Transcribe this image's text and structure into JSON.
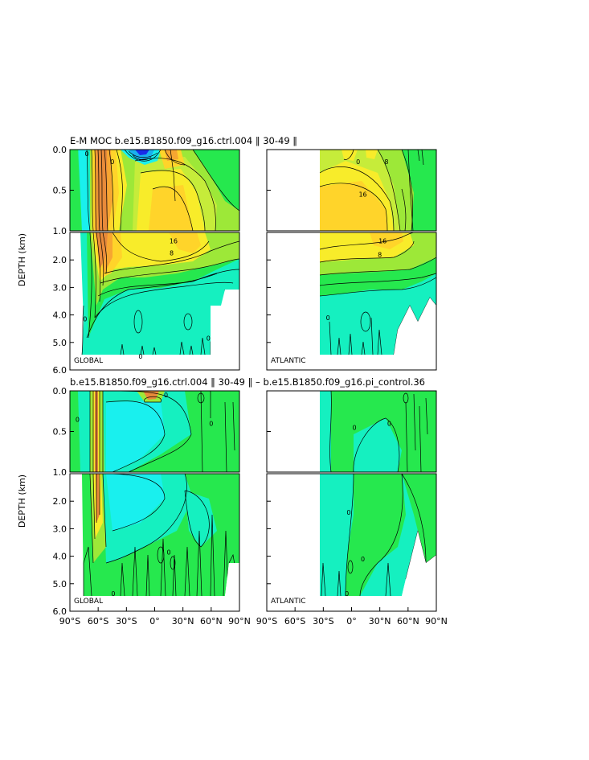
{
  "figure": {
    "title_top": "E-M MOC   b.e15.B1850.f09_g16.ctrl.004  ‖ 30-49 ‖",
    "title_bottom": "b.e15.B1850.f09_g16.ctrl.004  ‖ 30-49 ‖  –  b.e15.B1850.f09_g16.pi_control.36"
  },
  "axes": {
    "ylabel": "DEPTH (km)",
    "upper_y_ticks": [
      "0.0",
      "0.5",
      "1.0"
    ],
    "lower_y_ticks": [
      "2.0",
      "3.0",
      "4.0",
      "5.0",
      "6.0"
    ],
    "x_ticks": [
      "90°S",
      "60°S",
      "30°S",
      "0°",
      "30°N",
      "60°N",
      "90°N"
    ]
  },
  "colors": {
    "cyan_neg": "#19f0ee",
    "teal": "#15f0c0",
    "aqua_green": "#1be8a6",
    "green": "#26e84e",
    "bright_green": "#1fe21f",
    "light_green": "#9de838",
    "yellow_green": "#c6ec3a",
    "yellow": "#f8ec2a",
    "gold": "#ffd42a",
    "orange": "#f7a631",
    "dark_orange": "#e88a3a",
    "blue": "#1a2be8"
  },
  "chart_data": [
    {
      "type": "heatmap",
      "region": "GLOBAL",
      "title": "E-M MOC   b.e15.B1850.f09_g16.ctrl.004  ‖ 30-49 ‖",
      "ylabel": "DEPTH (km)",
      "xlim": [
        -90,
        90
      ],
      "ylim": [
        6.0,
        0.0
      ],
      "contour_labels": [
        {
          "text": "16",
          "lat": 20,
          "depth": 1.3
        },
        {
          "text": "8",
          "lat": 18,
          "depth": 1.75
        },
        {
          "text": "0",
          "lat": 57,
          "depth": 4.85
        },
        {
          "text": "0",
          "lat": -15,
          "depth": 5.5
        },
        {
          "text": "0",
          "lat": -74,
          "depth": 4.15
        },
        {
          "text": "0",
          "lat": -45,
          "depth": 0.15
        },
        {
          "text": "0",
          "lat": -72,
          "depth": 0.05
        }
      ]
    },
    {
      "type": "heatmap",
      "region": "ATLANTIC",
      "ylabel": "DEPTH (km)",
      "xlim": [
        -90,
        90
      ],
      "ylim": [
        6.0,
        0.0
      ],
      "contour_labels": [
        {
          "text": "16",
          "lat": 12,
          "depth": 0.55
        },
        {
          "text": "16",
          "lat": 33,
          "depth": 1.3
        },
        {
          "text": "8",
          "lat": 30,
          "depth": 1.8
        },
        {
          "text": "0",
          "lat": 7,
          "depth": 0.15
        },
        {
          "text": "8",
          "lat": 37,
          "depth": 0.15
        },
        {
          "text": "0",
          "lat": -25,
          "depth": 4.1
        }
      ]
    },
    {
      "type": "heatmap",
      "region": "GLOBAL",
      "title": "b.e15.B1850.f09_g16.ctrl.004  ‖ 30-49 ‖  –  b.e15.B1850.f09_g16.pi_control.36",
      "ylabel": "DEPTH (km)",
      "xlim": [
        -90,
        90
      ],
      "ylim": [
        6.0,
        0.0
      ],
      "contour_labels": [
        {
          "text": "0",
          "lat": -82,
          "depth": 0.35
        },
        {
          "text": "0",
          "lat": 12,
          "depth": 0.05
        },
        {
          "text": "0",
          "lat": 60,
          "depth": 0.4
        },
        {
          "text": "0",
          "lat": 15,
          "depth": 3.85
        },
        {
          "text": "0",
          "lat": -44,
          "depth": 5.35
        }
      ]
    },
    {
      "type": "heatmap",
      "region": "ATLANTIC",
      "ylabel": "DEPTH (km)",
      "xlim": [
        -90,
        90
      ],
      "ylim": [
        6.0,
        0.0
      ],
      "contour_labels": [
        {
          "text": "0",
          "lat": 3,
          "depth": 0.45
        },
        {
          "text": "0",
          "lat": 40,
          "depth": 0.4
        },
        {
          "text": "0",
          "lat": -3,
          "depth": 2.4
        },
        {
          "text": "0",
          "lat": 12,
          "depth": 4.1
        },
        {
          "text": "0",
          "lat": -5,
          "depth": 5.35
        }
      ]
    }
  ]
}
